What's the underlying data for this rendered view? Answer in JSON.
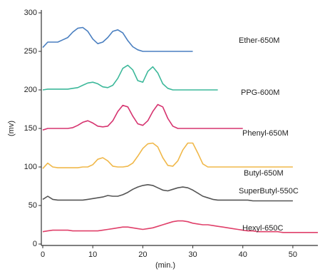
{
  "chart_data": {
    "type": "line",
    "xlabel": "(min.)",
    "ylabel": "(mv)",
    "xlim": [
      0,
      55
    ],
    "xticks": [
      0,
      10,
      20,
      30,
      40,
      50
    ],
    "ylim": [
      0,
      300
    ],
    "yticks": [
      0,
      50,
      100,
      150,
      200,
      250,
      300
    ],
    "x": [
      0,
      1,
      2,
      3,
      4,
      5,
      6,
      7,
      8,
      9,
      10,
      11,
      12,
      13,
      14,
      15,
      16,
      17,
      18,
      19,
      20,
      21,
      22,
      23,
      24,
      25,
      26,
      27,
      28,
      29,
      30,
      31,
      32,
      33,
      34,
      35,
      36,
      37,
      38,
      39,
      40,
      41,
      42,
      43,
      44,
      45,
      46,
      47,
      48,
      49,
      50,
      51,
      52,
      53,
      54,
      55
    ],
    "series": [
      {
        "name": "Ether-650M",
        "color": "#4a7fc0",
        "values": [
          255,
          262,
          262,
          262,
          265,
          268,
          275,
          280,
          281,
          276,
          266,
          260,
          262,
          268,
          276,
          278,
          274,
          264,
          256,
          252,
          250,
          250,
          250,
          250,
          250,
          250,
          250,
          250,
          250,
          250,
          250,
          null,
          null,
          null,
          null,
          null,
          null,
          null,
          null,
          null,
          null,
          null,
          null,
          null,
          null,
          null,
          null,
          null,
          null,
          null,
          null,
          null,
          null,
          null,
          null,
          null
        ]
      },
      {
        "name": "PPG-600M",
        "color": "#3cb89a",
        "values": [
          200,
          201,
          201,
          201,
          201,
          201,
          202,
          203,
          206,
          209,
          210,
          208,
          204,
          203,
          206,
          215,
          228,
          232,
          226,
          212,
          210,
          224,
          230,
          222,
          208,
          202,
          200,
          200,
          200,
          200,
          200,
          200,
          200,
          200,
          200,
          200,
          null,
          null,
          null,
          null,
          null,
          null,
          null,
          null,
          null,
          null,
          null,
          null,
          null,
          null,
          null,
          null,
          null,
          null,
          null,
          null
        ]
      },
      {
        "name": "Phenyl-650M",
        "color": "#d6336f",
        "values": [
          148,
          150,
          150,
          150,
          150,
          150,
          151,
          154,
          158,
          160,
          157,
          153,
          152,
          153,
          160,
          172,
          180,
          178,
          166,
          156,
          154,
          160,
          172,
          181,
          178,
          163,
          153,
          150,
          150,
          150,
          150,
          150,
          150,
          150,
          150,
          150,
          150,
          150,
          150,
          150,
          150,
          null,
          null,
          null,
          null,
          null,
          null,
          null,
          null,
          null,
          null,
          null,
          null,
          null,
          null,
          null
        ]
      },
      {
        "name": "Butyl-650M",
        "color": "#f0b84a",
        "values": [
          98,
          105,
          100,
          99,
          99,
          99,
          99,
          99,
          100,
          100,
          103,
          110,
          112,
          108,
          101,
          100,
          100,
          101,
          105,
          114,
          124,
          130,
          131,
          126,
          112,
          102,
          101,
          108,
          122,
          131,
          131,
          118,
          104,
          100,
          100,
          100,
          100,
          100,
          100,
          100,
          100,
          100,
          100,
          100,
          100,
          100,
          100,
          100,
          100,
          100,
          100,
          null,
          null,
          null,
          null,
          null
        ]
      },
      {
        "name": "SuperButyl-550C",
        "color": "#555555",
        "values": [
          58,
          62,
          58,
          57,
          57,
          57,
          57,
          57,
          57,
          58,
          59,
          60,
          61,
          63,
          62,
          62,
          64,
          67,
          71,
          74,
          76,
          77,
          76,
          73,
          70,
          69,
          71,
          73,
          74,
          73,
          70,
          66,
          62,
          60,
          58,
          57,
          57,
          57,
          57,
          57,
          57,
          57,
          56,
          56,
          56,
          56,
          56,
          56,
          56,
          56,
          56,
          null,
          null,
          null,
          null,
          null
        ]
      },
      {
        "name": "Hexyl-650C",
        "color": "#e0406a",
        "values": [
          16,
          17,
          18,
          18,
          18,
          18,
          17,
          17,
          17,
          17,
          17,
          17,
          18,
          19,
          20,
          21,
          22,
          22,
          21,
          20,
          19,
          20,
          21,
          23,
          25,
          27,
          29,
          30,
          30,
          29,
          27,
          26,
          25,
          25,
          24,
          23,
          22,
          21,
          20,
          19,
          18,
          17,
          17,
          16,
          16,
          16,
          16,
          16,
          15,
          15,
          15,
          15,
          15,
          15,
          15,
          15
        ]
      }
    ]
  }
}
